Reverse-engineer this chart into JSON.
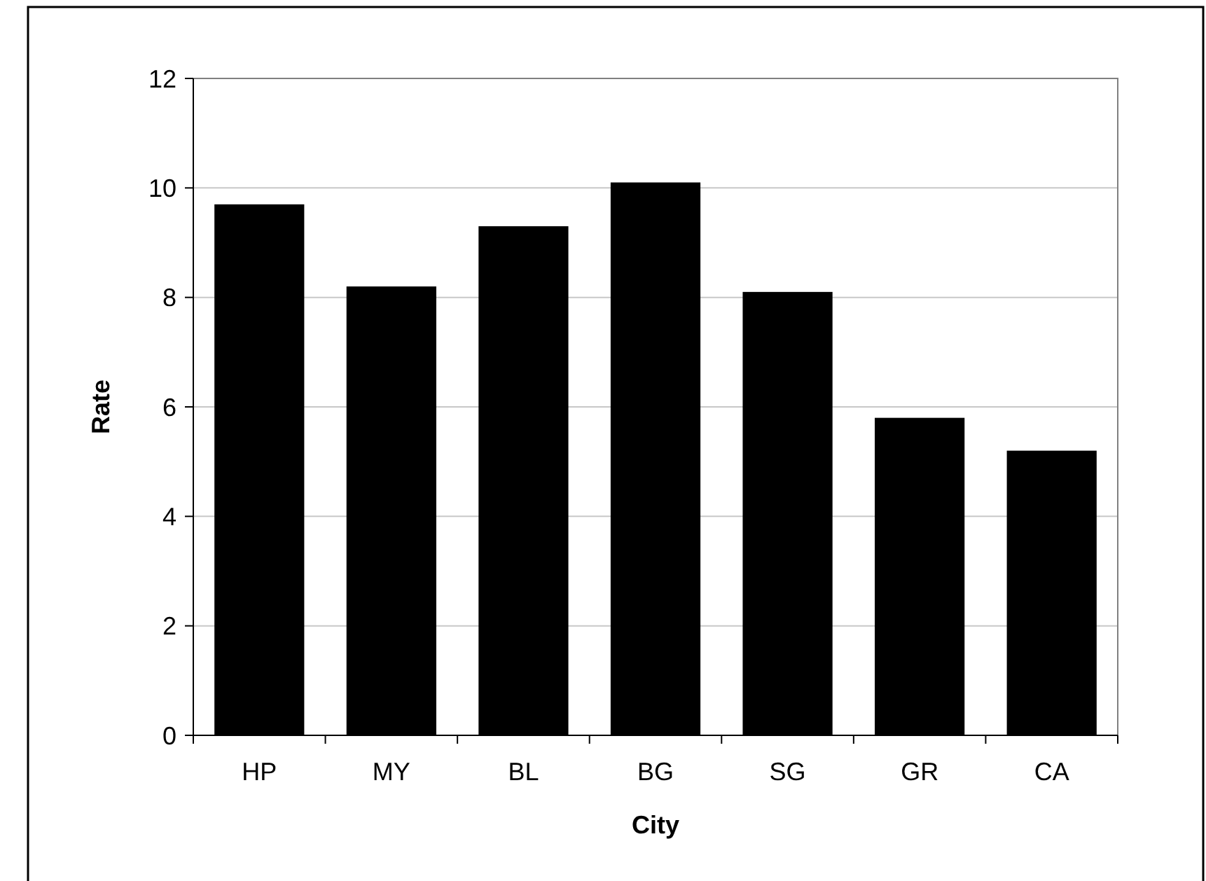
{
  "chart_data": {
    "type": "bar",
    "xlabel": "City",
    "ylabel": "Rate",
    "categories": [
      "HP",
      "MY",
      "BL",
      "BG",
      "SG",
      "GR",
      "CA"
    ],
    "values": [
      9.7,
      8.2,
      9.3,
      10.1,
      8.1,
      5.8,
      5.2
    ],
    "color": "#000000",
    "ylim": [
      0,
      12
    ],
    "yticks": [
      0,
      2,
      4,
      6,
      8,
      10,
      12
    ],
    "grid": "y"
  }
}
